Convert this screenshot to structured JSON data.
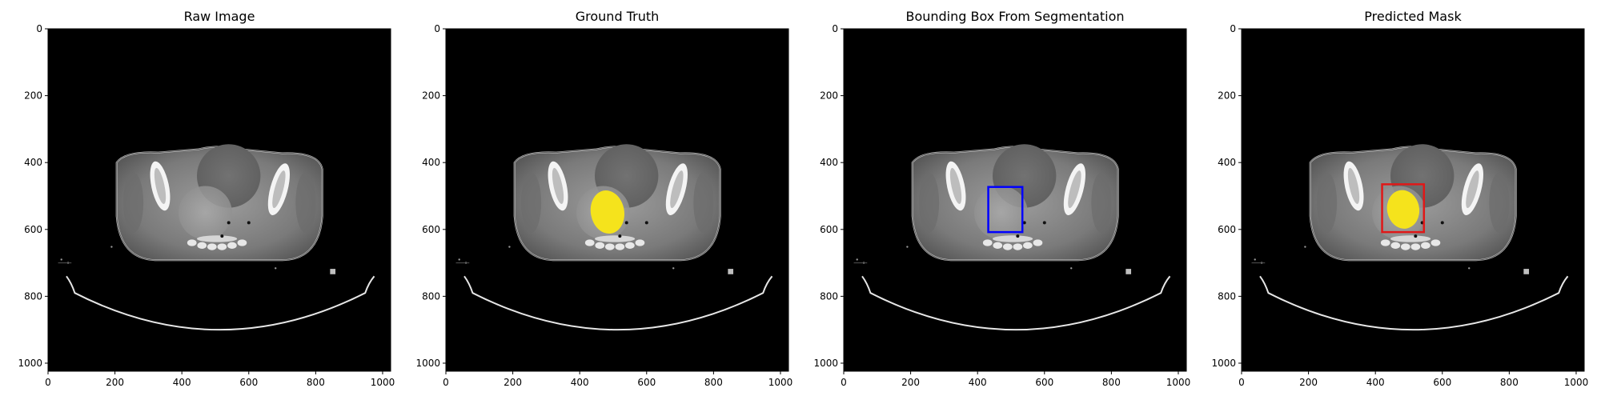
{
  "chart_data": [
    {
      "type": "image",
      "title": "Raw Image",
      "xlim": [
        0,
        1024
      ],
      "ylim": [
        1024,
        0
      ],
      "xticks": [
        0,
        200,
        400,
        600,
        800,
        1000
      ],
      "yticks": [
        0,
        200,
        400,
        600,
        800,
        1000
      ],
      "overlays": []
    },
    {
      "type": "image",
      "title": "Ground Truth",
      "xlim": [
        0,
        1024
      ],
      "ylim": [
        1024,
        0
      ],
      "xticks": [
        0,
        200,
        400,
        600,
        800,
        1000
      ],
      "yticks": [
        0,
        200,
        400,
        600,
        800,
        1000
      ],
      "overlays": [
        {
          "kind": "mask",
          "color": "#f5e31c",
          "cx": 483,
          "cy": 548,
          "rx": 50,
          "ry": 65
        }
      ]
    },
    {
      "type": "image",
      "title": "Bounding Box From Segmentation",
      "xlim": [
        0,
        1024
      ],
      "ylim": [
        1024,
        0
      ],
      "xticks": [
        0,
        200,
        400,
        600,
        800,
        1000
      ],
      "yticks": [
        0,
        200,
        400,
        600,
        800,
        1000
      ],
      "overlays": [
        {
          "kind": "box",
          "color": "#0000ff",
          "x0": 432,
          "y0": 473,
          "x1": 534,
          "y1": 608
        }
      ]
    },
    {
      "type": "image",
      "title": "Predicted Mask",
      "xlim": [
        0,
        1024
      ],
      "ylim": [
        1024,
        0
      ],
      "xticks": [
        0,
        200,
        400,
        600,
        800,
        1000
      ],
      "yticks": [
        0,
        200,
        400,
        600,
        800,
        1000
      ],
      "overlays": [
        {
          "kind": "mask",
          "color": "#f5e31c",
          "cx": 483,
          "cy": 540,
          "rx": 48,
          "ry": 58
        },
        {
          "kind": "box",
          "color": "#e01818",
          "x0": 420,
          "y0": 465,
          "x1": 545,
          "y1": 608
        }
      ]
    }
  ]
}
